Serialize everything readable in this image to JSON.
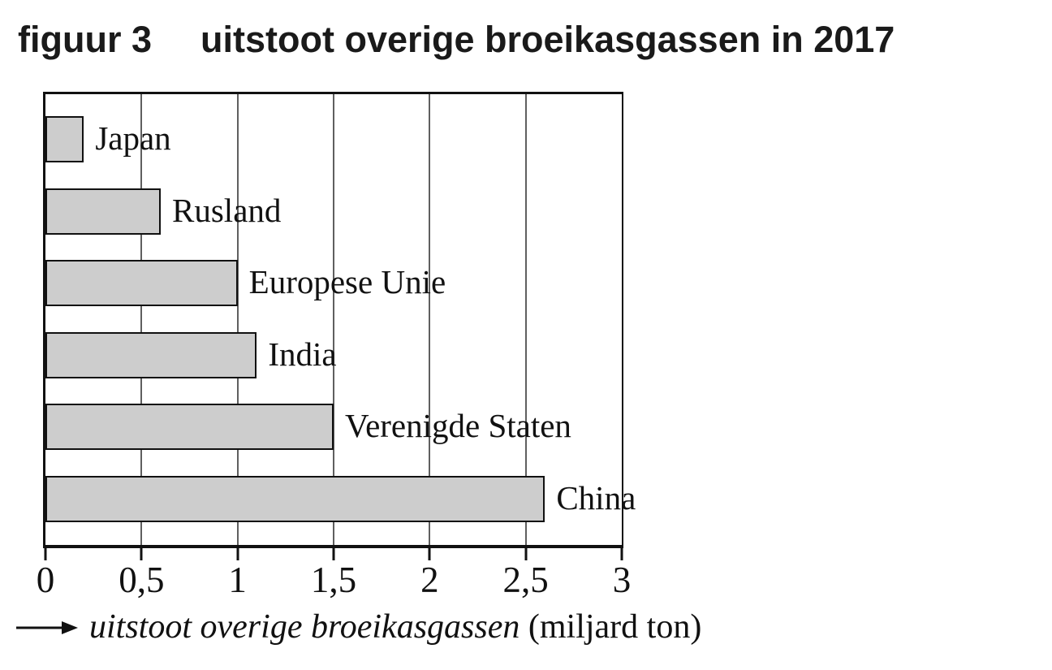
{
  "figure": {
    "title_prefix": "figuur 3",
    "title": "uitstoot overige broeikasgassen in 2017"
  },
  "chart_data": {
    "type": "bar",
    "orientation": "horizontal",
    "title": "figuur 3  uitstoot overige broeikasgassen in 2017",
    "categories": [
      "Japan",
      "Rusland",
      "Europese Unie",
      "India",
      "Verenigde Staten",
      "China"
    ],
    "values": [
      0.2,
      0.6,
      1.0,
      1.1,
      1.5,
      2.6
    ],
    "xlabel_italic": "uitstoot overige broeikasgassen",
    "xlabel_unit": "(miljard ton)",
    "xlim": [
      0,
      3
    ],
    "x_ticks": [
      0,
      0.5,
      1,
      1.5,
      2,
      2.5,
      3
    ],
    "x_tick_labels": [
      "0",
      "0,5",
      "1",
      "1,5",
      "2",
      "2,5",
      "3"
    ],
    "grid": "vertical gridlines every 0.5, on",
    "legend": "none",
    "bar_color": "#cdcdcd",
    "bar_border_color": "#111111",
    "gridline_color": "#5f5f5f"
  }
}
